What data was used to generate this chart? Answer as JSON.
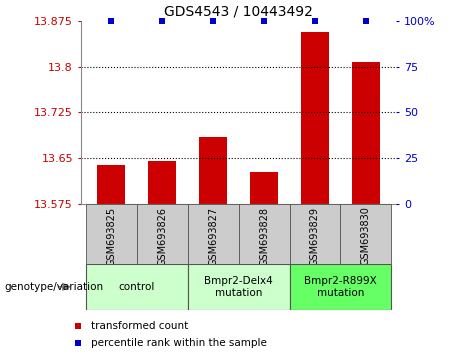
{
  "title": "GDS4543 / 10443492",
  "samples": [
    "GSM693825",
    "GSM693826",
    "GSM693827",
    "GSM693828",
    "GSM693829",
    "GSM693830"
  ],
  "bar_values": [
    13.638,
    13.645,
    13.685,
    13.627,
    13.858,
    13.808
  ],
  "percentile_values": [
    100,
    100,
    100,
    100,
    100,
    100
  ],
  "y_min": 13.575,
  "y_max": 13.875,
  "y_ticks": [
    13.575,
    13.65,
    13.725,
    13.8,
    13.875
  ],
  "y_tick_labels": [
    "13.575",
    "13.65",
    "13.725",
    "13.8",
    "13.875"
  ],
  "y2_ticks": [
    0,
    25,
    50,
    75,
    100
  ],
  "y2_tick_labels": [
    "0",
    "25",
    "50",
    "75",
    "100%"
  ],
  "bar_color": "#cc0000",
  "percentile_color": "#0000cc",
  "group_ranges": [
    [
      0,
      1
    ],
    [
      2,
      3
    ],
    [
      4,
      5
    ]
  ],
  "group_labels": [
    "control",
    "Bmpr2-Delx4\nmutation",
    "Bmpr2-R899X\nmutation"
  ],
  "group_colors": [
    "#ccffcc",
    "#ccffcc",
    "#66ff66"
  ],
  "legend_items": [
    {
      "color": "#cc0000",
      "label": "transformed count"
    },
    {
      "color": "#0000cc",
      "label": "percentile rank within the sample"
    }
  ],
  "genotype_label": "genotype/variation",
  "tick_bg_color": "#cccccc",
  "group_border_color": "#555555"
}
